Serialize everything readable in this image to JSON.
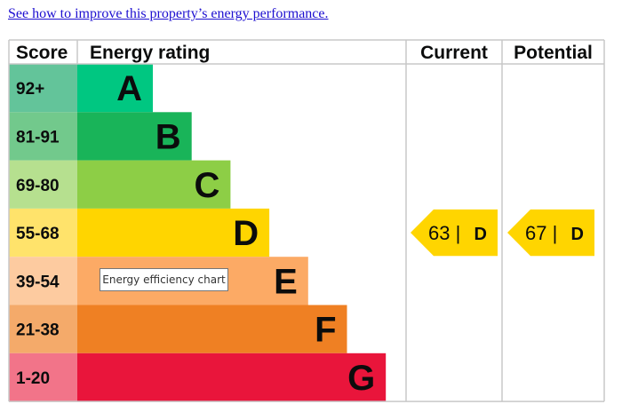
{
  "link_text": "See how to improve this property’s energy performance.",
  "tooltip": "Energy efficiency chart",
  "chart_data": {
    "type": "table",
    "headers": [
      "Score",
      "Energy rating",
      "Current",
      "Potential"
    ],
    "bands": [
      {
        "score": "92+",
        "rating": "A",
        "color": "#00c781",
        "score_color": "#63c49a"
      },
      {
        "score": "81-91",
        "rating": "B",
        "color": "#19b459",
        "score_color": "#72c98c"
      },
      {
        "score": "69-80",
        "rating": "C",
        "color": "#8dce46",
        "score_color": "#b6e08f"
      },
      {
        "score": "55-68",
        "rating": "D",
        "color": "#ffd500",
        "score_color": "#ffe36b"
      },
      {
        "score": "39-54",
        "rating": "E",
        "color": "#fcaa65",
        "score_color": "#fdcba0"
      },
      {
        "score": "21-38",
        "rating": "F",
        "color": "#ef8023",
        "score_color": "#f4aa6a"
      },
      {
        "score": "1-20",
        "rating": "G",
        "color": "#e9153b",
        "score_color": "#f27489"
      }
    ],
    "current": {
      "value": 63,
      "rating": "D",
      "label": "63 |",
      "color": "#ffd500"
    },
    "potential": {
      "value": 67,
      "rating": "D",
      "label": "67 |",
      "color": "#ffd500"
    }
  }
}
